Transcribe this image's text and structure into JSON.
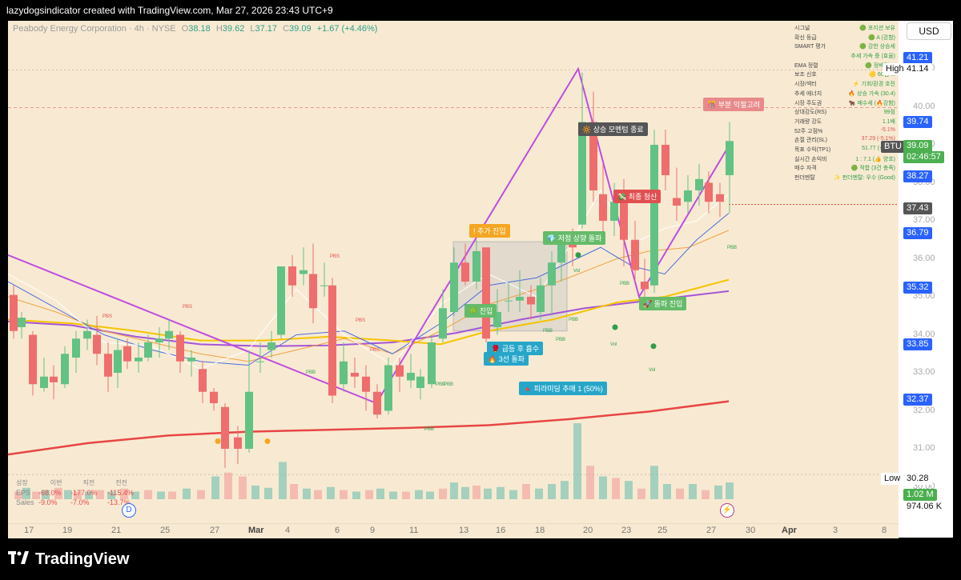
{
  "header": {
    "attribution": "lazydogsindicator created with TradingView.com, Mar 27, 2026 23:43 UTC+9"
  },
  "legend": {
    "symbol_text": "Peabody Energy Corporation · 4h · NYSE",
    "o_label": "O",
    "o": "38.18",
    "h_label": "H",
    "h": "39.62",
    "l_label": "L",
    "l": "37.17",
    "c_label": "C",
    "c": "39.09",
    "change": "+1.67 (+4.46%)"
  },
  "currency_button": "USD",
  "price_axis": {
    "ticks": [
      "41.00",
      "40.00",
      "39.00",
      "38.00",
      "37.00",
      "36.00",
      "35.00",
      "34.00",
      "33.00",
      "32.00",
      "31.00",
      "30.00"
    ],
    "labels": [
      {
        "text": "41.21",
        "style": "blue"
      },
      {
        "text": "High",
        "style": "text"
      },
      {
        "text": "41.14",
        "style": "text"
      },
      {
        "text": "39.74",
        "style": "blue"
      },
      {
        "text": "BTU",
        "style": "gray"
      },
      {
        "text": "39.09",
        "style": "green"
      },
      {
        "text": "02:46:57",
        "style": "green"
      },
      {
        "text": "38.27",
        "style": "blue"
      },
      {
        "text": "37.43",
        "style": "gray"
      },
      {
        "text": "36.79",
        "style": "blue"
      },
      {
        "text": "35.32",
        "style": "blue"
      },
      {
        "text": "33.85",
        "style": "blue"
      },
      {
        "text": "32.37",
        "style": "blue"
      },
      {
        "text": "Low",
        "style": "text"
      },
      {
        "text": "30.28",
        "style": "text"
      },
      {
        "text": "1.02 M",
        "style": "green"
      },
      {
        "text": "974.06 K",
        "style": "text"
      }
    ]
  },
  "time_axis": [
    "17",
    "19",
    "21",
    "25",
    "27",
    "Mar",
    "4",
    "6",
    "9",
    "11",
    "13",
    "16",
    "18",
    "20",
    "23",
    "25",
    "27",
    "30",
    "Apr",
    "3",
    "8"
  ],
  "info_table": [
    {
      "k": "시그널",
      "v": "🟢 포지션 보유"
    },
    {
      "k": "확신 등급",
      "v": "🟢 A (강함)"
    },
    {
      "k": "SMART 평가",
      "v": "🟢 강한 상승세"
    },
    {
      "k": "",
      "v": "추세 가속 중 (효율)"
    },
    {
      "k": "EMA 정렬",
      "v": "🟢 정배열 ..."
    },
    {
      "k": "보조 신호",
      "v": "🟡 60점 ..."
    },
    {
      "k": "시장/섹터",
      "v": "⚡ 기회/환경 호전"
    },
    {
      "k": "추세 에너지",
      "v": "🔥 상승 가속 (30.4)"
    },
    {
      "k": "시장 주도권",
      "v": "🐂 매수세 (🔥강함)"
    },
    {
      "k": "상대강도(RS)",
      "v": "99점"
    },
    {
      "k": "거래량 강도",
      "v": "1.1배"
    },
    {
      "k": "52주 고점%",
      "v": "-5.1%",
      "red": true
    },
    {
      "k": "손절 관리(SL)",
      "v": "37.29 (-5.1%)",
      "red": true
    },
    {
      "k": "목표 수익(TP1)",
      "v": "51.77 (+32...)"
    },
    {
      "k": "실시간 손익비",
      "v": "1 : 7.1 (👍 양호)"
    },
    {
      "k": "매수 자격",
      "v": "🟢 적합 (3건 충족)"
    },
    {
      "k": "펀더멘탈",
      "v": "✨ 펀더멘탈: 우수 (Good)"
    }
  ],
  "tags": [
    {
      "text": "🎊 부분 익절고려",
      "bg": "#e88a8a"
    },
    {
      "text": "🔆 상승 모멘텀 종료",
      "bg": "#555"
    },
    {
      "text": "💸 최종 청산",
      "bg": "#e05050"
    },
    {
      "text": "! 추가 진입",
      "bg": "#f5a623"
    },
    {
      "text": "💎 저점 상향 돌파",
      "bg": "#66bb6a"
    },
    {
      "text": "🍀 진입",
      "bg": "#66bb6a"
    },
    {
      "text": "🚀 돌파 진입",
      "bg": "#66bb6a"
    },
    {
      "text": "🥊 급등 후 흡수",
      "bg": "#26a6c9"
    },
    {
      "text": "🔥 3선 돌파",
      "bg": "#26a6c9"
    },
    {
      "text": "🔺 피라미딩 추매 1 (50%)",
      "bg": "#26a6c9"
    }
  ],
  "stats": {
    "headers": [
      "성장",
      "이번",
      "직전",
      "전전"
    ],
    "eps_label": "EPS",
    "eps": [
      "-68.0%",
      "-177.0%",
      "-115.4%"
    ],
    "sales_label": "Sales",
    "sales": [
      "-9.0%",
      "-7.0%",
      "-13.7%"
    ]
  },
  "markers": {
    "pbs": "PBS",
    "pbb": "PBB",
    "vol": "Vol"
  },
  "events": {
    "dividend": "D",
    "earnings": "E"
  },
  "footer": {
    "brand": "TradingView"
  }
}
